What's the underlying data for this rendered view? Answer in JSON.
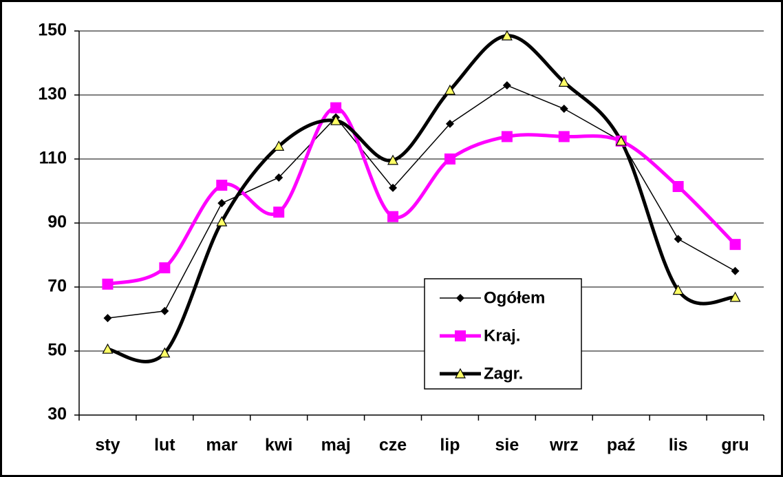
{
  "chart_data": {
    "type": "line",
    "categories": [
      "sty",
      "lut",
      "mar",
      "kwi",
      "maj",
      "cze",
      "lip",
      "sie",
      "wrz",
      "paź",
      "lis",
      "gru"
    ],
    "series": [
      {
        "name": "Ogółem",
        "color": "#000000",
        "marker": "diamond",
        "smooth": false,
        "values": [
          60.3,
          62.5,
          96.2,
          104.2,
          123,
          101,
          121,
          133,
          125.7,
          115.6,
          85,
          75
        ]
      },
      {
        "name": "Kraj.",
        "color": "#ff00ff",
        "marker": "square",
        "smooth": true,
        "values": [
          70.9,
          76,
          101.8,
          93.4,
          126,
          92,
          110,
          117,
          117,
          115.6,
          101.4,
          83.3
        ]
      },
      {
        "name": "Zagr.",
        "color": "#000000",
        "marker": "triangle",
        "smooth": true,
        "values": [
          50.6,
          49.4,
          90.4,
          114,
          122,
          109.6,
          131.5,
          148.5,
          134,
          115.6,
          69,
          66.8
        ]
      }
    ],
    "ylim": [
      30,
      150
    ],
    "yticks": [
      30,
      50,
      70,
      90,
      110,
      130,
      150
    ],
    "grid": true,
    "legend": "lower right"
  }
}
